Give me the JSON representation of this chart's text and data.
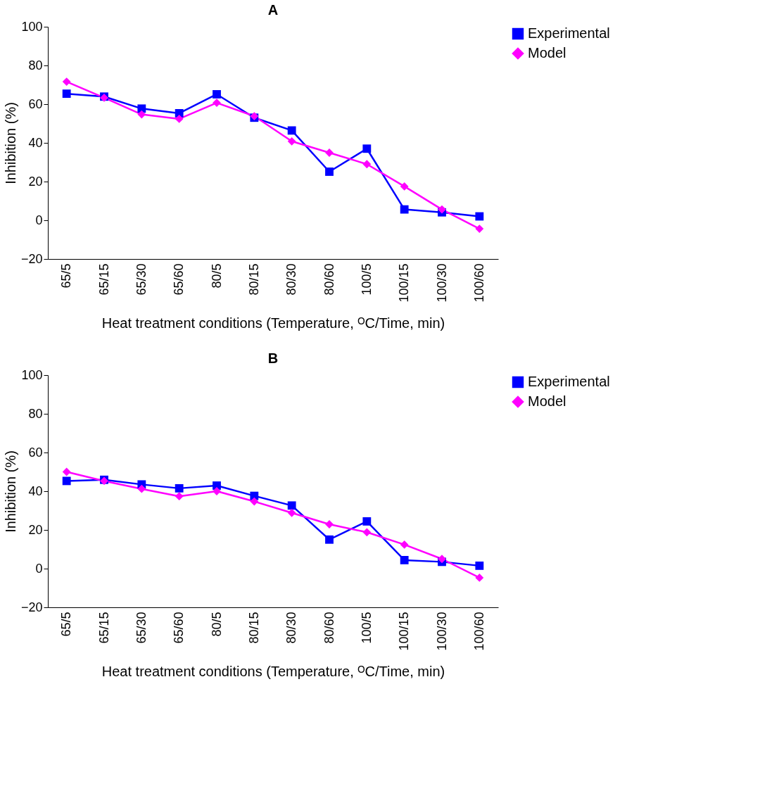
{
  "chart_data": [
    {
      "type": "line",
      "title": "A",
      "xlabel": "Heat treatment conditions (Temperature, ᴼC/Time, min)",
      "ylabel": "Inhibition (%)",
      "categories": [
        "65/5",
        "65/15",
        "65/30",
        "65/60",
        "80/5",
        "80/15",
        "80/30",
        "80/60",
        "100/5",
        "100/15",
        "100/30",
        "100/60"
      ],
      "series": [
        {
          "name": "Experimental",
          "color": "#0000ff",
          "marker": "square",
          "values": [
            65.4,
            63.9,
            57.7,
            55.3,
            65.1,
            53,
            46.4,
            25.1,
            37,
            5.6,
            4.1,
            2
          ]
        },
        {
          "name": "Model",
          "color": "#ff00ff",
          "marker": "diamond",
          "values": [
            71.6,
            63.3,
            54.7,
            52.4,
            60.7,
            53.8,
            40.8,
            34.9,
            29,
            17.5,
            5.6,
            -4.4
          ]
        }
      ],
      "ylim": [
        -20,
        100
      ],
      "yticks": [
        -20,
        0,
        20,
        40,
        60,
        80,
        100
      ],
      "grid": false,
      "legend": "top right"
    },
    {
      "type": "line",
      "title": "B",
      "xlabel": "Heat treatment conditions (Temperature, ᴼC/Time, min)",
      "ylabel": "Inhibition (%)",
      "categories": [
        "65/5",
        "65/15",
        "65/30",
        "65/60",
        "80/5",
        "80/15",
        "80/30",
        "80/60",
        "100/5",
        "100/15",
        "100/30",
        "100/60"
      ],
      "series": [
        {
          "name": "Experimental",
          "color": "#0000ff",
          "marker": "square",
          "values": [
            45.3,
            45.9,
            43.5,
            41.5,
            42.9,
            37.6,
            32.6,
            15,
            24.4,
            4.4,
            3.5,
            1.5
          ]
        },
        {
          "name": "Model",
          "color": "#ff00ff",
          "marker": "diamond",
          "values": [
            50,
            45.3,
            41.2,
            37.4,
            40,
            34.7,
            28.8,
            22.9,
            18.8,
            12.4,
            5,
            -4.7
          ]
        }
      ],
      "ylim": [
        -20,
        100
      ],
      "yticks": [
        -20,
        0,
        20,
        40,
        60,
        80,
        100
      ],
      "grid": false,
      "legend": "top right"
    }
  ]
}
